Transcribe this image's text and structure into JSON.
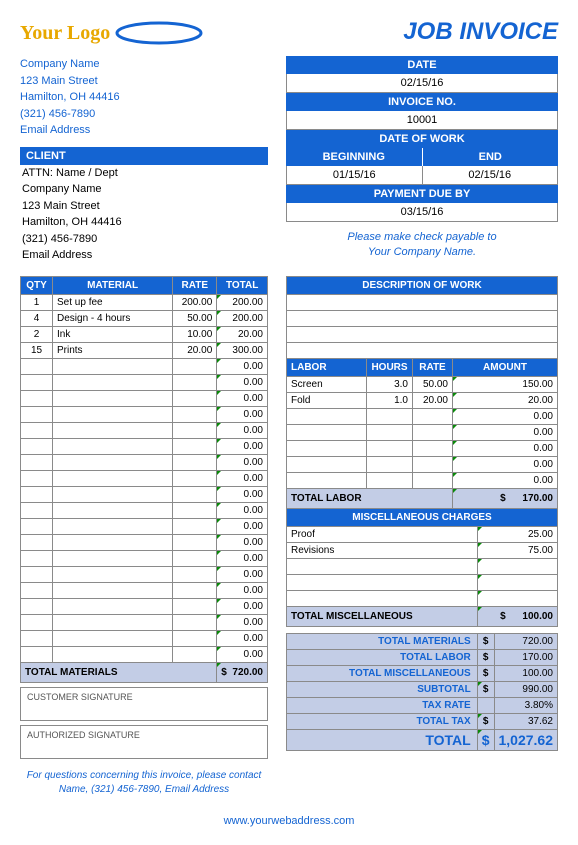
{
  "logo_text": "Your Logo",
  "title": "JOB INVOICE",
  "company": {
    "name": "Company Name",
    "street": "123 Main Street",
    "city": "Hamilton, OH  44416",
    "phone": "(321) 456-7890",
    "email": "Email Address"
  },
  "client_header": "CLIENT",
  "client": {
    "attn": "ATTN: Name / Dept",
    "name": "Company Name",
    "street": "123 Main Street",
    "city": "Hamilton, OH  44416",
    "phone": "(321) 456-7890",
    "email": "Email Address"
  },
  "meta": {
    "date_label": "DATE",
    "date_value": "02/15/16",
    "invoice_no_label": "INVOICE NO.",
    "invoice_no_value": "10001",
    "date_of_work_label": "DATE OF WORK",
    "beginning_label": "BEGINNING",
    "end_label": "END",
    "beginning_value": "01/15/16",
    "end_value": "02/15/16",
    "payment_due_label": "PAYMENT DUE BY",
    "payment_due_value": "03/15/16"
  },
  "payable_line1": "Please make check payable to",
  "payable_line2": "Your Company Name.",
  "materials": {
    "headers": {
      "qty": "QTY",
      "material": "MATERIAL",
      "rate": "RATE",
      "total": "TOTAL"
    },
    "rows": [
      {
        "qty": "1",
        "material": "Set up fee",
        "rate": "200.00",
        "total": "200.00"
      },
      {
        "qty": "4",
        "material": "Design - 4 hours",
        "rate": "50.00",
        "total": "200.00"
      },
      {
        "qty": "2",
        "material": "Ink",
        "rate": "10.00",
        "total": "20.00"
      },
      {
        "qty": "15",
        "material": "Prints",
        "rate": "20.00",
        "total": "300.00"
      }
    ],
    "empty_rows": 19,
    "total_label": "TOTAL MATERIALS",
    "total_value": "720.00"
  },
  "desc_header": "DESCRIPTION OF WORK",
  "desc_empty_rows": 4,
  "labor": {
    "headers": {
      "labor": "LABOR",
      "hours": "HOURS",
      "rate": "RATE",
      "amount": "AMOUNT"
    },
    "rows": [
      {
        "labor": "Screen",
        "hours": "3.0",
        "rate": "50.00",
        "amount": "150.00"
      },
      {
        "labor": "Fold",
        "hours": "1.0",
        "rate": "20.00",
        "amount": "20.00"
      }
    ],
    "empty_rows": 5,
    "total_label": "TOTAL LABOR",
    "total_value": "170.00"
  },
  "misc": {
    "header": "MISCELLANEOUS CHARGES",
    "rows": [
      {
        "desc": "Proof",
        "amount": "25.00"
      },
      {
        "desc": "Revisions",
        "amount": "75.00"
      }
    ],
    "empty_rows": 3,
    "total_label": "TOTAL MISCELLANEOUS",
    "total_value": "100.00"
  },
  "summary": {
    "total_materials_label": "TOTAL MATERIALS",
    "total_materials_value": "720.00",
    "total_labor_label": "TOTAL LABOR",
    "total_labor_value": "170.00",
    "total_misc_label": "TOTAL MISCELLANEOUS",
    "total_misc_value": "100.00",
    "subtotal_label": "SUBTOTAL",
    "subtotal_value": "990.00",
    "tax_rate_label": "TAX RATE",
    "tax_rate_value": "3.80%",
    "total_tax_label": "TOTAL TAX",
    "total_tax_value": "37.62",
    "grand_total_label": "TOTAL",
    "grand_total_value": "1,027.62"
  },
  "sig": {
    "customer": "CUSTOMER SIGNATURE",
    "authorized": "AUTHORIZED SIGNATURE"
  },
  "footer": {
    "line1": "For questions concerning this invoice, please contact",
    "line2": "Name, (321) 456-7890, Email Address",
    "web": "www.yourwebaddress.com"
  },
  "currency": "$"
}
